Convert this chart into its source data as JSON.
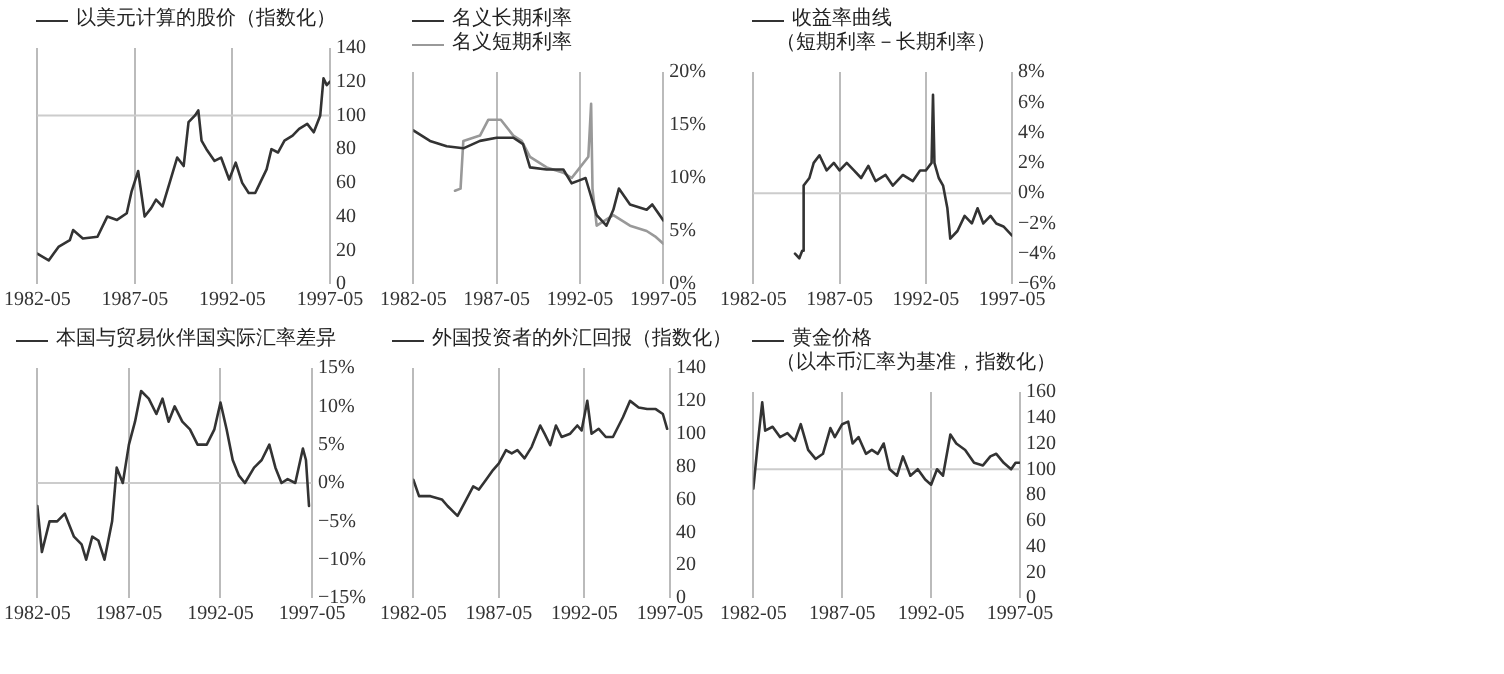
{
  "chart_data": [
    {
      "type": "line",
      "legend": "top left",
      "grid": "x",
      "marker": "none",
      "xlim": [
        "1982-05",
        "1997-05"
      ],
      "xticks": [
        "1982-05",
        "1987-05",
        "1992-05",
        "1997-05"
      ],
      "ylim": [
        0,
        140
      ],
      "yticks": [
        0,
        20,
        40,
        60,
        80,
        100,
        120,
        140
      ],
      "ref_lines": [
        {
          "axis": "y",
          "value": 100,
          "color": "#cccccc"
        }
      ],
      "series": [
        {
          "name": "以美元计算的股价（指数化）",
          "color": "#333333",
          "x": [
            "1982-05",
            "1982-12",
            "1983-06",
            "1984-01",
            "1984-03",
            "1984-09",
            "1985-06",
            "1985-12",
            "1986-06",
            "1986-12",
            "1987-03",
            "1987-07",
            "1987-11",
            "1988-03",
            "1988-06",
            "1988-10",
            "1989-03",
            "1989-07",
            "1989-11",
            "1990-02",
            "1990-06",
            "1990-08",
            "1990-10",
            "1991-01",
            "1991-06",
            "1991-10",
            "1992-03",
            "1992-07",
            "1992-11",
            "1993-03",
            "1993-07",
            "1993-10",
            "1994-02",
            "1994-05",
            "1994-09",
            "1995-01",
            "1995-06",
            "1995-10",
            "1996-03",
            "1996-07",
            "1996-11",
            "1997-01",
            "1997-03",
            "1997-05"
          ],
          "values": [
            18,
            14,
            22,
            26,
            32,
            27,
            28,
            40,
            38,
            42,
            55,
            67,
            40,
            45,
            50,
            46,
            62,
            75,
            70,
            96,
            100,
            103,
            85,
            80,
            73,
            75,
            62,
            72,
            60,
            54,
            54,
            60,
            68,
            80,
            78,
            85,
            88,
            92,
            95,
            90,
            100,
            122,
            118,
            120
          ]
        }
      ]
    },
    {
      "type": "line",
      "legend": "top left",
      "grid": "x",
      "marker": "none",
      "xlim": [
        "1982-05",
        "1997-05"
      ],
      "xticks": [
        "1982-05",
        "1987-05",
        "1992-05",
        "1997-05"
      ],
      "ylim": [
        0,
        20
      ],
      "yticks": [
        {
          "value": 0,
          "label": "0%"
        },
        {
          "value": 5,
          "label": "5%"
        },
        {
          "value": 10,
          "label": "10%"
        },
        {
          "value": 15,
          "label": "15%"
        },
        {
          "value": 20,
          "label": "20%"
        }
      ],
      "series": [
        {
          "name": "名义长期利率",
          "color": "#333333",
          "x": [
            "1982-05",
            "1983-05",
            "1984-05",
            "1985-05",
            "1986-05",
            "1987-05",
            "1988-05",
            "1988-12",
            "1989-05",
            "1990-05",
            "1991-05",
            "1991-11",
            "1992-05",
            "1992-09",
            "1993-05",
            "1993-12",
            "1994-05",
            "1994-09",
            "1995-05",
            "1996-05",
            "1996-09",
            "1997-05"
          ],
          "values": [
            14.5,
            13.5,
            13,
            12.8,
            13.5,
            13.8,
            13.8,
            13.2,
            11,
            10.8,
            10.8,
            9.5,
            9.8,
            10,
            6.5,
            5.5,
            7,
            9,
            7.5,
            7,
            7.5,
            6
          ]
        },
        {
          "name": "名义短期利率",
          "color": "#999999",
          "x": [
            "1984-11",
            "1985-03",
            "1985-05",
            "1986-05",
            "1986-11",
            "1987-05",
            "1987-08",
            "1988-05",
            "1988-11",
            "1989-05",
            "1989-11",
            "1990-05",
            "1991-05",
            "1991-11",
            "1992-05",
            "1992-11",
            "1993-01",
            "1993-02",
            "1993-05",
            "1993-11",
            "1994-05",
            "1994-11",
            "1995-05",
            "1996-05",
            "1996-11",
            "1997-05"
          ],
          "values": [
            8.8,
            9,
            13.5,
            14,
            15.5,
            15.5,
            15.5,
            14,
            13.5,
            12,
            11.5,
            11,
            10.5,
            10,
            11,
            12,
            17,
            9,
            5.5,
            6,
            6.5,
            6,
            5.5,
            5,
            4.5,
            3.8
          ]
        }
      ]
    },
    {
      "type": "line",
      "legend": "top left",
      "subtitle": "（短期利率－长期利率）",
      "grid": "x",
      "marker": "none",
      "xlim": [
        "1982-05",
        "1997-05"
      ],
      "xticks": [
        "1982-05",
        "1987-05",
        "1992-05",
        "1997-05"
      ],
      "ylim": [
        -6,
        8
      ],
      "yticks": [
        {
          "value": -6,
          "label": "−6%"
        },
        {
          "value": -4,
          "label": "−4%"
        },
        {
          "value": -2,
          "label": "−2%"
        },
        {
          "value": 0,
          "label": "0%"
        },
        {
          "value": 2,
          "label": "2%"
        },
        {
          "value": 4,
          "label": "4%"
        },
        {
          "value": 6,
          "label": "6%"
        },
        {
          "value": 8,
          "label": "8%"
        }
      ],
      "ref_lines": [
        {
          "axis": "y",
          "value": 0,
          "color": "#cccccc"
        }
      ],
      "series": [
        {
          "name": "收益率曲线",
          "color": "#333333",
          "x": [
            "1984-10",
            "1985-01",
            "1985-03",
            "1985-04",
            "1985-08",
            "1985-11",
            "1986-03",
            "1986-08",
            "1987-01",
            "1987-05",
            "1987-10",
            "1988-03",
            "1988-08",
            "1989-01",
            "1989-06",
            "1990-01",
            "1990-06",
            "1991-01",
            "1991-08",
            "1992-01",
            "1992-05",
            "1992-09",
            "1992-10",
            "1992-11",
            "1993-02",
            "1993-05",
            "1993-08",
            "1993-10",
            "1994-03",
            "1994-08",
            "1995-01",
            "1995-05",
            "1995-09",
            "1996-02",
            "1996-06",
            "1996-11",
            "1997-05"
          ],
          "values": [
            -4,
            -4.3,
            -3.8,
            0.5,
            1,
            2,
            2.5,
            1.5,
            2,
            1.5,
            2,
            1.5,
            1,
            1.8,
            0.8,
            1.2,
            0.5,
            1.2,
            0.8,
            1.5,
            1.5,
            2,
            6.5,
            2,
            1,
            0.5,
            -1,
            -3,
            -2.5,
            -1.5,
            -2,
            -1,
            -2,
            -1.5,
            -2,
            -2.2,
            -2.8
          ]
        }
      ]
    },
    {
      "type": "line",
      "legend": "top",
      "grid": "x",
      "marker": "none",
      "xlim": [
        "1982-05",
        "1997-05"
      ],
      "xticks": [
        "1982-05",
        "1987-05",
        "1992-05",
        "1997-05"
      ],
      "ylim": [
        -15,
        15
      ],
      "yticks": [
        {
          "value": -15,
          "label": "−15%"
        },
        {
          "value": -10,
          "label": "−10%"
        },
        {
          "value": -5,
          "label": "−5%"
        },
        {
          "value": 0,
          "label": "0%"
        },
        {
          "value": 5,
          "label": "5%"
        },
        {
          "value": 10,
          "label": "10%"
        },
        {
          "value": 15,
          "label": "15%"
        }
      ],
      "ref_lines": [
        {
          "axis": "y",
          "value": 0,
          "color": "#cccccc"
        }
      ],
      "series": [
        {
          "name": "本国与贸易伙伴国实际汇率差异",
          "color": "#333333",
          "x": [
            "1982-05",
            "1982-08",
            "1983-01",
            "1983-06",
            "1983-11",
            "1984-05",
            "1984-10",
            "1985-01",
            "1985-05",
            "1985-09",
            "1986-01",
            "1986-06",
            "1986-09",
            "1987-01",
            "1987-05",
            "1987-09",
            "1988-01",
            "1988-06",
            "1988-11",
            "1989-03",
            "1989-07",
            "1989-11",
            "1990-04",
            "1990-09",
            "1991-02",
            "1991-08",
            "1992-01",
            "1992-05",
            "1992-09",
            "1993-01",
            "1993-05",
            "1993-09",
            "1994-03",
            "1994-08",
            "1995-01",
            "1995-05",
            "1995-09",
            "1996-01",
            "1996-06",
            "1996-11",
            "1997-01",
            "1997-03"
          ],
          "values": [
            -3,
            -9,
            -5,
            -5,
            -4,
            -7,
            -8,
            -10,
            -7,
            -7.5,
            -10,
            -5,
            2,
            0,
            5,
            8,
            12,
            11,
            9,
            11,
            8,
            10,
            8,
            7,
            5,
            5,
            7,
            10.5,
            7,
            3,
            1,
            0,
            2,
            3,
            5,
            2,
            0,
            0.5,
            0,
            4.5,
            3,
            -3
          ]
        }
      ]
    },
    {
      "type": "line",
      "legend": "top",
      "grid": "x",
      "marker": "none",
      "xlim": [
        "1982-05",
        "1997-05"
      ],
      "xticks": [
        "1982-05",
        "1987-05",
        "1992-05",
        "1997-05"
      ],
      "ylim": [
        0,
        140
      ],
      "yticks": [
        0,
        20,
        40,
        60,
        80,
        100,
        120,
        140
      ],
      "series": [
        {
          "name": "外国投资者的外汇回报（指数化）",
          "color": "#333333",
          "x": [
            "1982-05",
            "1982-09",
            "1983-05",
            "1984-01",
            "1984-05",
            "1984-12",
            "1985-05",
            "1985-11",
            "1986-03",
            "1986-08",
            "1987-01",
            "1987-05",
            "1987-10",
            "1988-02",
            "1988-06",
            "1988-11",
            "1989-04",
            "1989-10",
            "1990-01",
            "1990-05",
            "1990-09",
            "1991-01",
            "1991-07",
            "1991-12",
            "1992-03",
            "1992-07",
            "1992-10",
            "1993-03",
            "1993-08",
            "1994-01",
            "1994-08",
            "1995-01",
            "1995-07",
            "1996-01",
            "1996-07",
            "1996-12",
            "1997-03"
          ],
          "values": [
            72,
            62,
            62,
            60,
            56,
            50,
            58,
            68,
            66,
            72,
            78,
            82,
            90,
            88,
            90,
            85,
            92,
            105,
            100,
            93,
            105,
            98,
            100,
            105,
            102,
            120,
            100,
            103,
            98,
            98,
            110,
            120,
            116,
            115,
            115,
            112,
            103
          ]
        }
      ]
    },
    {
      "type": "line",
      "legend": "top left",
      "subtitle": "（以本币汇率为基准，指数化）",
      "grid": "x",
      "marker": "none",
      "xlim": [
        "1982-05",
        "1997-05"
      ],
      "xticks": [
        "1982-05",
        "1987-05",
        "1992-05",
        "1997-05"
      ],
      "ylim": [
        0,
        160
      ],
      "yticks": [
        0,
        20,
        40,
        60,
        80,
        100,
        120,
        140,
        160
      ],
      "ref_lines": [
        {
          "axis": "y",
          "value": 100,
          "color": "#cccccc"
        }
      ],
      "series": [
        {
          "name": "黄金价格",
          "color": "#333333",
          "x": [
            "1982-05",
            "1982-08",
            "1982-11",
            "1983-01",
            "1983-06",
            "1983-11",
            "1984-04",
            "1984-09",
            "1985-01",
            "1985-06",
            "1985-11",
            "1986-04",
            "1986-09",
            "1986-12",
            "1987-05",
            "1987-09",
            "1987-12",
            "1988-04",
            "1988-09",
            "1989-01",
            "1989-05",
            "1989-09",
            "1990-01",
            "1990-06",
            "1990-10",
            "1991-03",
            "1991-08",
            "1992-01",
            "1992-05",
            "1992-09",
            "1993-01",
            "1993-06",
            "1993-10",
            "1994-04",
            "1994-10",
            "1995-04",
            "1995-09",
            "1996-01",
            "1996-06",
            "1996-11",
            "1997-02",
            "1997-05"
          ],
          "values": [
            85,
            120,
            152,
            130,
            133,
            125,
            128,
            122,
            135,
            115,
            108,
            112,
            132,
            125,
            135,
            137,
            120,
            125,
            112,
            115,
            112,
            120,
            100,
            95,
            110,
            95,
            100,
            92,
            88,
            100,
            95,
            127,
            120,
            115,
            105,
            103,
            110,
            112,
            105,
            100,
            105,
            105
          ]
        }
      ]
    }
  ]
}
